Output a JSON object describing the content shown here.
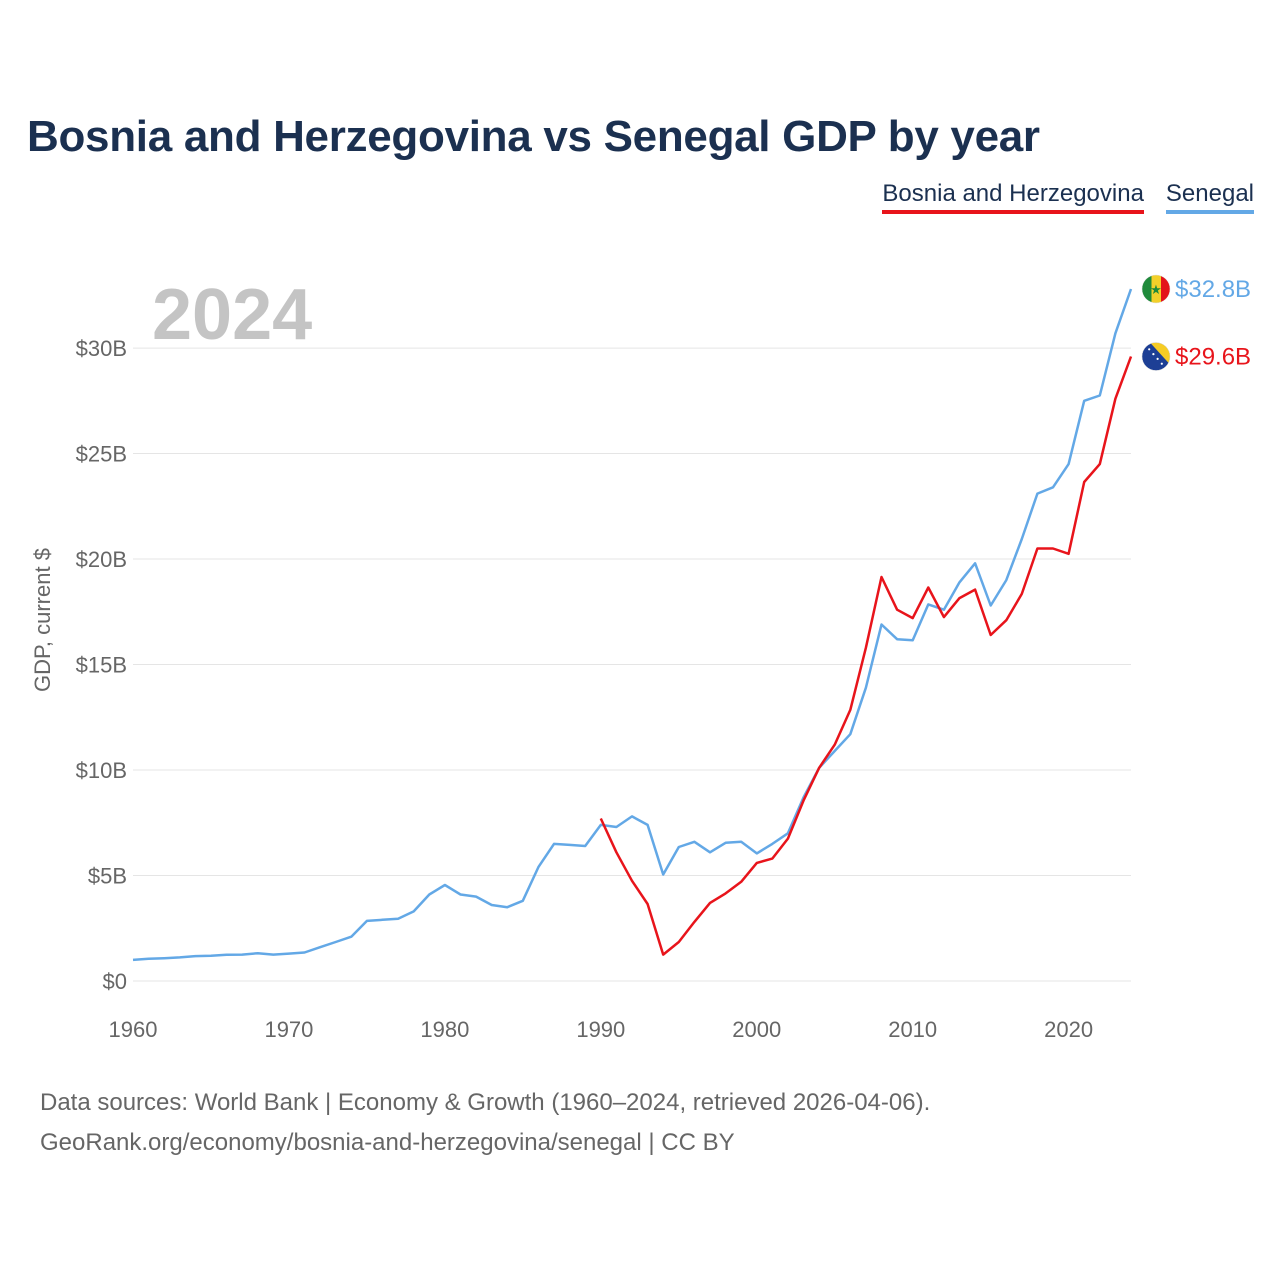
{
  "title": "Bosnia and Herzegovina vs Senegal GDP by year",
  "legend": [
    {
      "label": "Bosnia and Herzegovina",
      "color": "#e8141b"
    },
    {
      "label": "Senegal",
      "color": "#63a8e6"
    }
  ],
  "footer": {
    "line1": "Data sources: World Bank | Economy & Growth (1960–2024, retrieved 2026-04-06).",
    "line2": "GeoRank.org/economy/bosnia-and-herzegovina/senegal | CC BY"
  },
  "chart_data": {
    "type": "line",
    "title": "Bosnia and Herzegovina vs Senegal GDP by year",
    "year_watermark": "2024",
    "ylabel": "GDP, current $",
    "xlabel": "",
    "xlim": [
      1960,
      2024
    ],
    "ylim": [
      0,
      32.8
    ],
    "unit": "billion USD",
    "x_ticks": [
      "1960",
      "1970",
      "1980",
      "1990",
      "2000",
      "2010",
      "2020"
    ],
    "y_ticks": [
      {
        "value": 0,
        "label": "$0"
      },
      {
        "value": 5,
        "label": "$5B"
      },
      {
        "value": 10,
        "label": "$10B"
      },
      {
        "value": 15,
        "label": "$15B"
      },
      {
        "value": 20,
        "label": "$20B"
      },
      {
        "value": 25,
        "label": "$25B"
      },
      {
        "value": 30,
        "label": "$30B"
      }
    ],
    "grid": true,
    "series": [
      {
        "name": "Senegal",
        "color": "#63a8e6",
        "end_label": "$32.8B",
        "x": [
          1960,
          1961,
          1962,
          1963,
          1964,
          1965,
          1966,
          1967,
          1968,
          1969,
          1970,
          1971,
          1972,
          1973,
          1974,
          1975,
          1976,
          1977,
          1978,
          1979,
          1980,
          1981,
          1982,
          1983,
          1984,
          1985,
          1986,
          1987,
          1988,
          1989,
          1990,
          1991,
          1992,
          1993,
          1994,
          1995,
          1996,
          1997,
          1998,
          1999,
          2000,
          2001,
          2002,
          2003,
          2004,
          2005,
          2006,
          2007,
          2008,
          2009,
          2010,
          2011,
          2012,
          2013,
          2014,
          2015,
          2016,
          2017,
          2018,
          2019,
          2020,
          2021,
          2022,
          2023,
          2024
        ],
        "values": [
          1.0,
          1.05,
          1.08,
          1.12,
          1.18,
          1.2,
          1.24,
          1.25,
          1.32,
          1.25,
          1.3,
          1.35,
          1.6,
          1.85,
          2.1,
          2.85,
          2.9,
          2.95,
          3.3,
          4.1,
          4.55,
          4.1,
          4.0,
          3.6,
          3.5,
          3.8,
          5.4,
          6.5,
          6.45,
          6.4,
          7.4,
          7.3,
          7.8,
          7.4,
          5.05,
          6.35,
          6.6,
          6.1,
          6.55,
          6.6,
          6.05,
          6.5,
          7.0,
          8.7,
          10.1,
          10.9,
          11.7,
          13.9,
          16.9,
          16.2,
          16.15,
          17.85,
          17.6,
          18.9,
          19.8,
          17.8,
          19.0,
          20.95,
          23.1,
          23.4,
          24.5,
          27.5,
          27.75,
          30.7,
          32.8
        ]
      },
      {
        "name": "Bosnia and Herzegovina",
        "color": "#e8141b",
        "end_label": "$29.6B",
        "x": [
          1990,
          1991,
          1992,
          1993,
          1994,
          1995,
          1996,
          1997,
          1998,
          1999,
          2000,
          2001,
          2002,
          2003,
          2004,
          2005,
          2006,
          2007,
          2008,
          2009,
          2010,
          2011,
          2012,
          2013,
          2014,
          2015,
          2016,
          2017,
          2018,
          2019,
          2020,
          2021,
          2022,
          2023,
          2024
        ],
        "values": [
          7.7,
          6.1,
          4.75,
          3.65,
          1.25,
          1.85,
          2.8,
          3.7,
          4.15,
          4.7,
          5.6,
          5.8,
          6.75,
          8.55,
          10.1,
          11.2,
          12.85,
          15.8,
          19.15,
          17.6,
          17.2,
          18.65,
          17.25,
          18.15,
          18.55,
          16.4,
          17.1,
          18.35,
          20.5,
          20.5,
          20.25,
          23.65,
          24.5,
          27.6,
          29.6
        ]
      }
    ]
  }
}
